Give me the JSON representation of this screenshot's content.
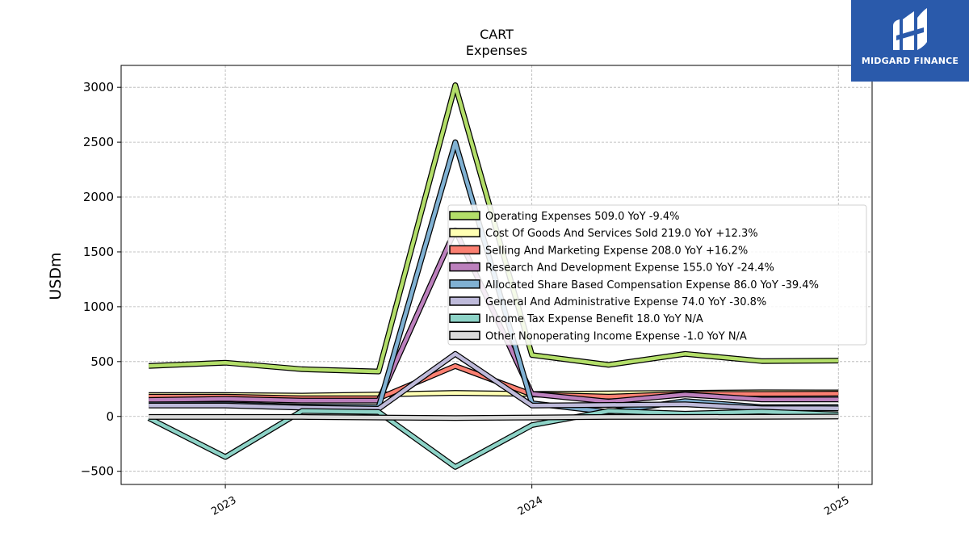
{
  "chart_data": {
    "type": "line",
    "title": "CART",
    "subtitle": "Expenses",
    "ylabel": "USDm",
    "xlabel": "",
    "ylim": [
      -620,
      3200
    ],
    "yticks": [
      -500,
      0,
      500,
      1000,
      1500,
      2000,
      2500,
      3000
    ],
    "xticks": [
      {
        "label": "2023",
        "x": 2023.0
      },
      {
        "label": "2024",
        "x": 2024.0
      },
      {
        "label": "2025",
        "x": 2025.0
      }
    ],
    "xlim": [
      2022.66,
      2025.11
    ],
    "x": [
      2022.75,
      2023.0,
      2023.25,
      2023.5,
      2023.75,
      2024.0,
      2024.25,
      2024.5,
      2024.75,
      2025.0
    ],
    "grid": true,
    "legend_position": "center-right",
    "series": [
      {
        "name": "Operating Expenses",
        "legend": "Operating Expenses  509.0 YoY -9.4%",
        "color": "#b3de69",
        "values": [
          460,
          490,
          430,
          410,
          3020,
          560,
          470,
          570,
          505,
          509
        ]
      },
      {
        "name": "Cost Of Goods And Services Sold",
        "legend": "Cost Of Goods And Services Sold  219.0 YoY +12.3%",
        "color": "#ffffb3",
        "values": [
          195,
          195,
          190,
          200,
          215,
          205,
          210,
          215,
          220,
          219
        ]
      },
      {
        "name": "Selling And Marketing Expense",
        "legend": "Selling And Marketing Expense  208.0 YoY +16.2%",
        "color": "#fb8072",
        "values": [
          180,
          180,
          165,
          165,
          460,
          200,
          180,
          205,
          205,
          208
        ]
      },
      {
        "name": "Research And Development Expense",
        "legend": "Research And Development Expense  155.0 YoY -24.4%",
        "color": "#bc80bd",
        "values": [
          150,
          160,
          145,
          145,
          1700,
          205,
          135,
          200,
          155,
          155
        ]
      },
      {
        "name": "Allocated Share Based Compensation Expense",
        "legend": "Allocated Share Based Compensation Expense  86.0 YoY -39.4%",
        "color": "#80b1d3",
        "values": [
          110,
          110,
          90,
          85,
          2500,
          120,
          40,
          140,
          85,
          86
        ]
      },
      {
        "name": "General And Administrative Expense",
        "legend": "General And Administrative Expense  74.0 YoY -30.8%",
        "color": "#bebada",
        "values": [
          100,
          100,
          80,
          70,
          570,
          100,
          105,
          110,
          75,
          74
        ]
      },
      {
        "name": "Income Tax Expense Benefit",
        "legend": "Income Tax Expense Benefit  18.0 YoY N/A",
        "color": "#8dd3c7",
        "values": [
          -15,
          -370,
          50,
          40,
          -460,
          -80,
          50,
          25,
          45,
          18
        ]
      },
      {
        "name": "Other Nonoperating Income Expense",
        "legend": "Other Nonoperating Income Expense  -1.0 YoY N/A",
        "color": "#d9d9d9",
        "values": [
          -5,
          -5,
          -5,
          -10,
          -15,
          -10,
          -5,
          -5,
          -3,
          -1
        ]
      }
    ]
  },
  "logo": {
    "text": "MIDGARD FINANCE"
  }
}
